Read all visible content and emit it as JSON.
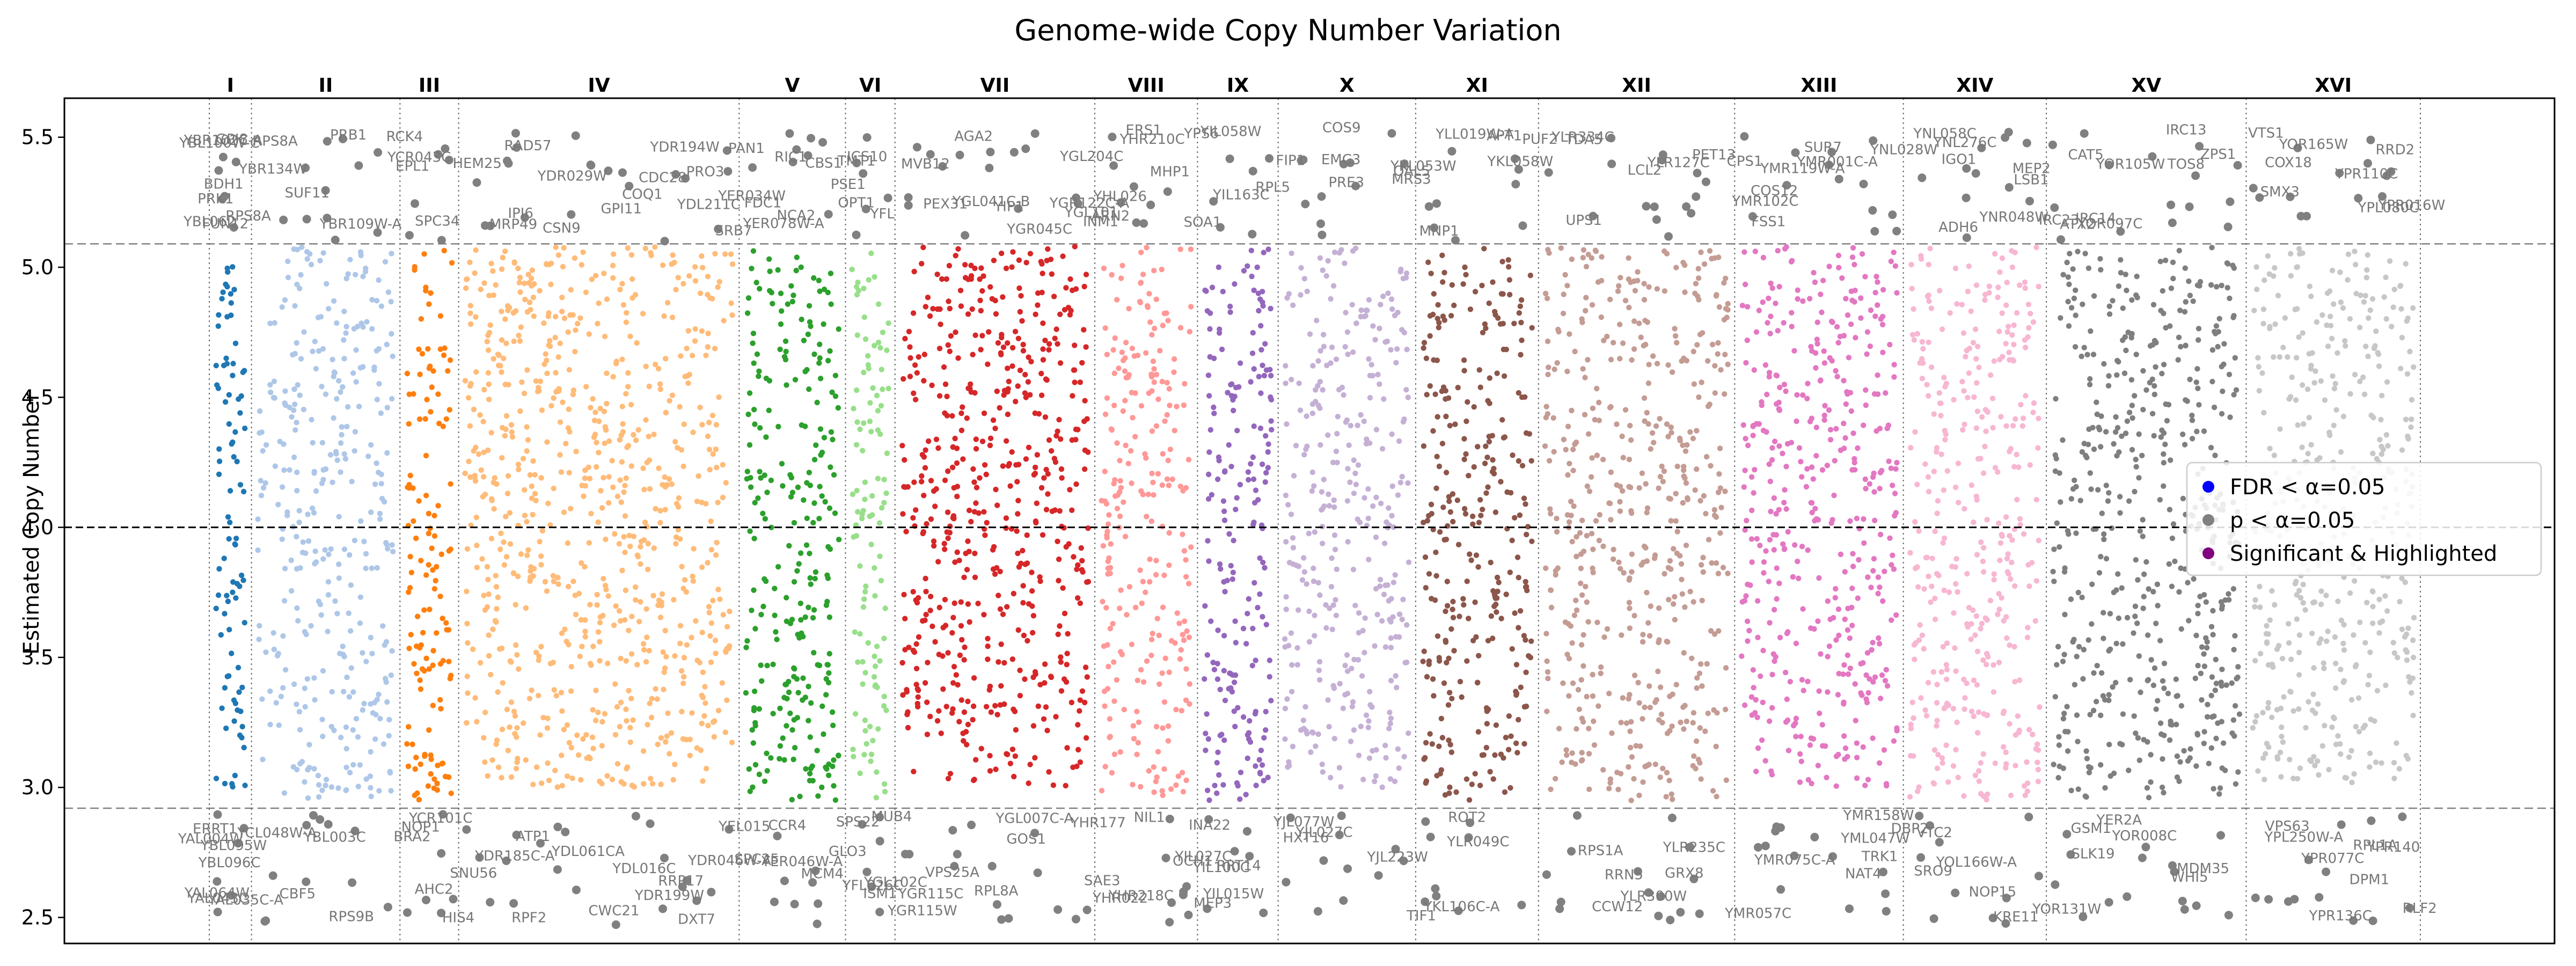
{
  "chart_data": {
    "type": "scatter",
    "title": "Genome-wide Copy Number Variation",
    "ylabel": "Estimated Copy Number",
    "xlabel": "",
    "ylim": [
      2.4,
      5.65
    ],
    "y_ticks": [
      "2.5",
      "3.0",
      "3.5",
      "4.0",
      "4.5",
      "5.0",
      "5.5"
    ],
    "y_tick_values": [
      2.5,
      3.0,
      3.5,
      4.0,
      4.5,
      5.0,
      5.5
    ],
    "grid": false,
    "baseline": 4.0,
    "upper_threshold": 5.09,
    "lower_threshold": 2.92,
    "chromosomes": [
      {
        "name": "I",
        "weight": 0.23,
        "color": "#1f77b4",
        "count": 90
      },
      {
        "name": "II",
        "weight": 0.81,
        "color": "#aec7e8",
        "count": 340
      },
      {
        "name": "III",
        "weight": 0.32,
        "color": "#ff7f0e",
        "count": 130
      },
      {
        "name": "IV",
        "weight": 1.53,
        "color": "#ffbb78",
        "count": 760
      },
      {
        "name": "V",
        "weight": 0.58,
        "color": "#2ca02c",
        "count": 260
      },
      {
        "name": "VI",
        "weight": 0.27,
        "color": "#98df8a",
        "count": 110
      },
      {
        "name": "VII",
        "weight": 1.09,
        "color": "#d62728",
        "count": 540
      },
      {
        "name": "VIII",
        "weight": 0.56,
        "color": "#ff9896",
        "count": 250
      },
      {
        "name": "IX",
        "weight": 0.44,
        "color": "#9467bd",
        "count": 200
      },
      {
        "name": "X",
        "weight": 0.75,
        "color": "#c5b0d5",
        "count": 330
      },
      {
        "name": "XI",
        "weight": 0.67,
        "color": "#8c564b",
        "count": 300
      },
      {
        "name": "XII",
        "weight": 1.07,
        "color": "#c49c94",
        "count": 490
      },
      {
        "name": "XIII",
        "weight": 0.92,
        "color": "#e377c2",
        "count": 430
      },
      {
        "name": "XIV",
        "weight": 0.78,
        "color": "#f7b6d2",
        "count": 360
      },
      {
        "name": "XV",
        "weight": 1.09,
        "color": "#7f7f7f",
        "count": 500
      },
      {
        "name": "XVI",
        "weight": 0.95,
        "color": "#c7c7c7",
        "count": 430
      }
    ],
    "legend_position": "center-right",
    "legend": [
      {
        "label": "FDR < α=0.05",
        "color": "#0000ff"
      },
      {
        "label": "p < α=0.05",
        "color": "#808080"
      },
      {
        "label": "Significant & Highlighted",
        "color": "#800080"
      }
    ],
    "annotations_top": [
      {
        "chrom": "I",
        "labels": [
          "YBL100W-C",
          "FUN12",
          "YBL062",
          "BDH1",
          "GPI8",
          "PRK1",
          "YBR102C-A",
          "RPS8A"
        ]
      },
      {
        "chrom": "II",
        "labels": [
          "YBR134W",
          "YBR109W-A",
          "RPS8A",
          "SUF11",
          "PRB1"
        ]
      },
      {
        "chrom": "III",
        "labels": [
          "RCK4",
          "SPC34",
          "EPL1",
          "YCR043C"
        ]
      },
      {
        "chrom": "IV",
        "labels": [
          "HEM25",
          "YDR029W",
          "YDR194W",
          "CSN9",
          "CDC28",
          "IPI6",
          "COQ1",
          "PRO3",
          "RAD57",
          "GPI11",
          "SRB7",
          "MRP49",
          "YDL211C"
        ]
      },
      {
        "chrom": "V",
        "labels": [
          "FDC1",
          "YER078W-A",
          "PAN1",
          "RIC1",
          "CBS1",
          "YER034W",
          "NCA2"
        ]
      },
      {
        "chrom": "VI",
        "labels": [
          "TMT1",
          "ICS10",
          "PSE1",
          "OPT1",
          "YFL"
        ]
      },
      {
        "chrom": "VII",
        "labels": [
          "PEX31",
          "AGA2",
          "YGL204C",
          "YGL041C-B",
          "YGR045C",
          "MVB12",
          "YIP1",
          "YGR122C-A",
          "YGL101"
        ]
      },
      {
        "chrom": "VIII",
        "labels": [
          "INM1",
          "MHP1",
          "ARN2",
          "ERS1",
          "YHR210C",
          "YHL026"
        ]
      },
      {
        "chrom": "IX",
        "labels": [
          "YPS6",
          "YIL163C",
          "SOA1",
          "YIL058W",
          "RPL5"
        ]
      },
      {
        "chrom": "X",
        "labels": [
          "EMC3",
          "COS9",
          "FIP1",
          "PRE3",
          "OAL5",
          "MRS3"
        ]
      },
      {
        "chrom": "XI",
        "labels": [
          "YKL053W",
          "YLL019W-A",
          "YKL058W",
          "MNP1",
          "APT1"
        ]
      },
      {
        "chrom": "XII",
        "labels": [
          "UPS1",
          "LCL2",
          "YLR334C",
          "TDA5",
          "PET13",
          "PUF2",
          "YLR127C"
        ]
      },
      {
        "chrom": "XIII",
        "labels": [
          "YMR102C",
          "YMR119W-A",
          "FSS1",
          "COS12",
          "YMR001C-A",
          "CPS1",
          "SUR7"
        ]
      },
      {
        "chrom": "XIV",
        "labels": [
          "ADH6",
          "IGO1",
          "YNL028W",
          "YNL276C",
          "YNR048W",
          "MEP2",
          "YNL058C",
          "LSB1"
        ]
      },
      {
        "chrom": "XV",
        "labels": [
          "YOR097C",
          "ZPS1",
          "IRC23",
          "CAT5",
          "IRC13",
          "ATX2",
          "YOR105W",
          "TOS8",
          "IRC14"
        ]
      },
      {
        "chrom": "XVI",
        "labels": [
          "YOR165W",
          "YPL080C",
          "RRD2",
          "VTS1",
          "YPR016W",
          "SMX3",
          "COX18",
          "YPR110C"
        ]
      }
    ],
    "annotations_bottom": [
      {
        "chrom": "I",
        "labels": [
          "YAL043C",
          "YBL096C",
          "YAL064W",
          "ERRT1",
          "YAL035C-A",
          "YAL004W",
          "YBL095W"
        ]
      },
      {
        "chrom": "II",
        "labels": [
          "CBF5",
          "RPS9B",
          "YCL048W-A",
          "YBL003C"
        ]
      },
      {
        "chrom": "III",
        "labels": [
          "NOP1",
          "YCR101C",
          "HIS4",
          "BRA2",
          "AHC2"
        ]
      },
      {
        "chrom": "IV",
        "labels": [
          "SNU56",
          "YDL061CA",
          "YDR199W",
          "RPF2",
          "YDL016C",
          "YDR185C-A",
          "ATP1",
          "RRP17",
          "YDR046W-A",
          "CWC21",
          "DXT7"
        ]
      },
      {
        "chrom": "V",
        "labels": [
          "YEL015",
          "CCR4",
          "SPC25",
          "YER046W-A",
          "MCM4"
        ]
      },
      {
        "chrom": "VI",
        "labels": [
          "GLO3",
          "ISM1",
          "MUB4",
          "SPS22",
          "YFL026C"
        ]
      },
      {
        "chrom": "VII",
        "labels": [
          "YGL102C",
          "YGL007C-A",
          "YGR115C",
          "YGR115W",
          "GOS1",
          "VPS25A",
          "RPL8A"
        ]
      },
      {
        "chrom": "VIII",
        "labels": [
          "YHR022",
          "YHR218C",
          "YHR177",
          "NIL1",
          "OCH1",
          "SAE3"
        ]
      },
      {
        "chrom": "IX",
        "labels": [
          "YIL100C",
          "YIL015W",
          "MEP3",
          "INA22",
          "RRT14",
          "YIL027C"
        ]
      },
      {
        "chrom": "X",
        "labels": [
          "YJL077W",
          "YJL223W",
          "HXT16",
          "YJL027C"
        ]
      },
      {
        "chrom": "XI",
        "labels": [
          "YKL106C-A",
          "ROT2",
          "TIF1",
          "YLR049C"
        ]
      },
      {
        "chrom": "XII",
        "labels": [
          "RRN5",
          "CCW12",
          "YLR235C",
          "YLR300W",
          "GRX8",
          "RPS1A"
        ]
      },
      {
        "chrom": "XIII",
        "labels": [
          "YMR057C",
          "YMR158W",
          "YML047W",
          "YMR075C-A",
          "NAT4",
          "TRK1"
        ]
      },
      {
        "chrom": "XIV",
        "labels": [
          "DBP2",
          "NOP15",
          "SRO9",
          "YOL166W-A",
          "KRE11",
          "VTC2"
        ]
      },
      {
        "chrom": "XV",
        "labels": [
          "YOR131W",
          "WHI5",
          "SLK19",
          "YOR008C",
          "MDM35",
          "GSM1",
          "YER2A"
        ]
      },
      {
        "chrom": "XVI",
        "labels": [
          "YPL250W-A",
          "RPL1A",
          "RLF2",
          "YPR077C",
          "DPM1",
          "VPS63",
          "YPR136C",
          "YPR140"
        ]
      }
    ]
  }
}
